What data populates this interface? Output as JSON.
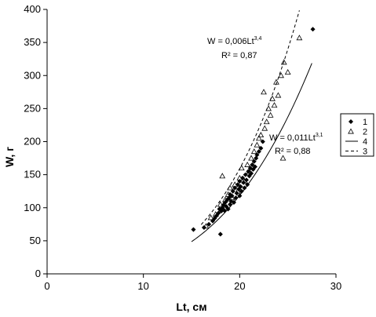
{
  "chart_data": {
    "type": "scatter",
    "xlabel": "Lt, см",
    "ylabel": "W, г",
    "xlim": [
      0,
      30
    ],
    "ylim": [
      0,
      400
    ],
    "x_ticks": [
      "0",
      "10",
      "20",
      "30"
    ],
    "y_ticks": [
      "0",
      "50",
      "100",
      "150",
      "200",
      "250",
      "300",
      "350",
      "400"
    ],
    "grid": false,
    "legend_placement": "right",
    "legend": [
      {
        "label": "1",
        "kind": "filled-diamond"
      },
      {
        "label": "2",
        "kind": "open-triangle"
      },
      {
        "label": "4",
        "kind": "solid-line"
      },
      {
        "label": "3",
        "kind": "dashed-line"
      }
    ],
    "annotations": {
      "group2": {
        "equation": "W = 0,006Lt",
        "exponent": "3,4",
        "r2": "R² = 0,87"
      },
      "group1": {
        "equation": "W = 0,011Lt",
        "exponent": "3,1",
        "r2": "R² = 0,88"
      }
    },
    "fits": [
      {
        "legend": "4",
        "style": "solid",
        "a": 0.011,
        "b": 3.1,
        "x_range": [
          15,
          27.5
        ]
      },
      {
        "legend": "3",
        "style": "dashed",
        "a": 0.006,
        "b": 3.4,
        "x_range": [
          16,
          26.2
        ]
      }
    ],
    "series": [
      {
        "legend": "1",
        "marker": "filled-diamond",
        "points": [
          [
            15.2,
            67
          ],
          [
            16.3,
            70
          ],
          [
            16.8,
            75
          ],
          [
            17.2,
            80
          ],
          [
            17.4,
            84
          ],
          [
            17.6,
            88
          ],
          [
            17.8,
            92
          ],
          [
            17.9,
            98
          ],
          [
            18.0,
            60
          ],
          [
            18.1,
            95
          ],
          [
            18.2,
            100
          ],
          [
            18.3,
            104
          ],
          [
            18.4,
            96
          ],
          [
            18.5,
            108
          ],
          [
            18.6,
            102
          ],
          [
            18.7,
            112
          ],
          [
            18.8,
            98
          ],
          [
            18.9,
            115
          ],
          [
            19.0,
            105
          ],
          [
            19.0,
            120
          ],
          [
            19.1,
            110
          ],
          [
            19.2,
            118
          ],
          [
            19.3,
            125
          ],
          [
            19.4,
            108
          ],
          [
            19.5,
            130
          ],
          [
            19.6,
            115
          ],
          [
            19.7,
            122
          ],
          [
            19.8,
            135
          ],
          [
            19.9,
            128
          ],
          [
            20.0,
            118
          ],
          [
            20.0,
            140
          ],
          [
            20.1,
            132
          ],
          [
            20.2,
            125
          ],
          [
            20.3,
            145
          ],
          [
            20.4,
            138
          ],
          [
            20.5,
            130
          ],
          [
            20.6,
            150
          ],
          [
            20.7,
            142
          ],
          [
            20.8,
            135
          ],
          [
            20.9,
            155
          ],
          [
            21.0,
            148
          ],
          [
            21.1,
            160
          ],
          [
            21.2,
            152
          ],
          [
            21.3,
            165
          ],
          [
            21.4,
            158
          ],
          [
            21.5,
            170
          ],
          [
            21.6,
            162
          ],
          [
            21.7,
            175
          ],
          [
            21.8,
            180
          ],
          [
            22.0,
            185
          ],
          [
            22.2,
            190
          ],
          [
            22.4,
            200
          ],
          [
            27.6,
            370
          ]
        ]
      },
      {
        "legend": "2",
        "marker": "open-triangle",
        "points": [
          [
            16.5,
            72
          ],
          [
            17.0,
            85
          ],
          [
            17.5,
            90
          ],
          [
            18.0,
            105
          ],
          [
            18.2,
            148
          ],
          [
            18.5,
            112
          ],
          [
            18.8,
            120
          ],
          [
            19.0,
            130
          ],
          [
            19.2,
            115
          ],
          [
            19.5,
            135
          ],
          [
            19.8,
            125
          ],
          [
            20.0,
            145
          ],
          [
            20.2,
            160
          ],
          [
            20.5,
            140
          ],
          [
            20.8,
            165
          ],
          [
            21.0,
            155
          ],
          [
            21.2,
            175
          ],
          [
            21.5,
            185
          ],
          [
            21.8,
            195
          ],
          [
            22.0,
            205
          ],
          [
            22.2,
            210
          ],
          [
            22.5,
            275
          ],
          [
            22.6,
            220
          ],
          [
            22.8,
            230
          ],
          [
            23.0,
            250
          ],
          [
            23.2,
            240
          ],
          [
            23.4,
            265
          ],
          [
            23.6,
            255
          ],
          [
            23.8,
            290
          ],
          [
            24.0,
            270
          ],
          [
            24.3,
            300
          ],
          [
            24.5,
            175
          ],
          [
            24.6,
            320
          ],
          [
            25.0,
            305
          ],
          [
            26.2,
            357
          ]
        ]
      }
    ]
  }
}
